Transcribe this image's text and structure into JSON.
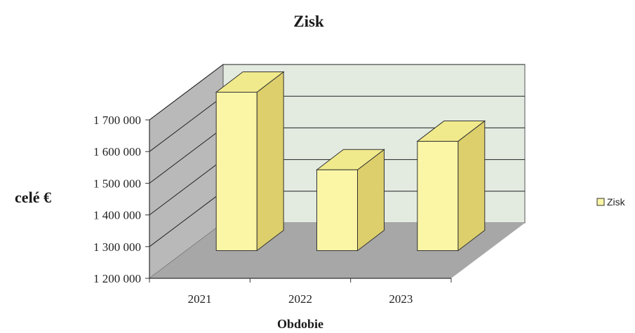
{
  "chart_data": {
    "type": "bar",
    "title": "Zisk",
    "xlabel": "Obdobie",
    "ylabel": "celé €",
    "categories": [
      "2021",
      "2022",
      "2023"
    ],
    "series": [
      {
        "name": "Zisk",
        "values": [
          1700000,
          1455000,
          1545000
        ]
      }
    ],
    "ylim": [
      1200000,
      1700000
    ],
    "yticks": [
      1200000,
      1300000,
      1400000,
      1500000,
      1600000,
      1700000
    ],
    "ytick_labels": [
      "1 200 000",
      "1 300 000",
      "1 400 000",
      "1 500 000",
      "1 600 000",
      "1 700 000"
    ],
    "grid": true,
    "legend_position": "right",
    "colors": {
      "bar_front": "#fbf6a6",
      "bar_side": "#dccf6c",
      "bar_top": "#f1ea8c",
      "back_wall": "#e3ebe1",
      "side_wall": "#b9b9b9",
      "floor": "#a7a7a7"
    }
  }
}
